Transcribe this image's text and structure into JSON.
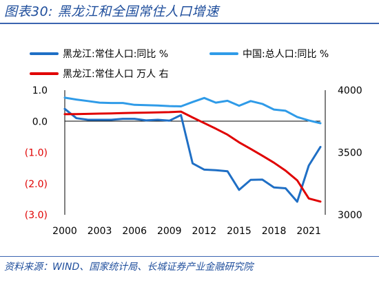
{
  "header": {
    "title": "图表30:  黑龙江和全国常住人口增速"
  },
  "footer": {
    "source": "资料来源：WIND、国家统计局、长城证券产业金融研究院"
  },
  "chart_data": {
    "type": "line",
    "legend": [
      {
        "name": "黑龙江:常住人口:同比 %",
        "color": "#1f6fc5"
      },
      {
        "name": "中国:总人口:同比 %",
        "color": "#2f9be8"
      },
      {
        "name": "黑龙江:常住人口 万人 右",
        "color": "#e00000"
      }
    ],
    "x": [
      2000,
      2001,
      2002,
      2003,
      2004,
      2005,
      2006,
      2007,
      2008,
      2009,
      2010,
      2011,
      2012,
      2013,
      2014,
      2015,
      2016,
      2017,
      2018,
      2019,
      2020,
      2021,
      2022
    ],
    "x_ticks": [
      "2000",
      "2003",
      "2006",
      "2009",
      "2012",
      "2015",
      "2018",
      "2021"
    ],
    "y_left": {
      "ticks": [
        "1.0",
        "0.0",
        "(1.0)",
        "(2.0)",
        "(3.0)"
      ],
      "range": [
        -3.0,
        1.0
      ]
    },
    "y_right": {
      "ticks": [
        "4000",
        "3500",
        "3000"
      ],
      "range": [
        3000,
        4000
      ]
    },
    "series": [
      {
        "name": "黑龙江:常住人口:同比 %",
        "color": "#1f6fc5",
        "axis": "left",
        "values": [
          0.4,
          0.1,
          0.05,
          0.05,
          0.05,
          0.08,
          0.08,
          0.03,
          0.05,
          0.02,
          0.2,
          -1.35,
          -1.55,
          -1.57,
          -1.6,
          -2.2,
          -1.88,
          -1.87,
          -2.12,
          -2.15,
          -2.58,
          -1.42,
          -0.82
        ]
      },
      {
        "name": "中国:总人口:同比 %",
        "color": "#2f9be8",
        "axis": "left",
        "values": [
          0.76,
          0.7,
          0.65,
          0.6,
          0.59,
          0.59,
          0.53,
          0.52,
          0.51,
          0.49,
          0.48,
          0.62,
          0.75,
          0.6,
          0.66,
          0.5,
          0.65,
          0.56,
          0.38,
          0.34,
          0.14,
          0.03,
          -0.06
        ]
      },
      {
        "name": "黑龙江:常住人口 万人 右",
        "color": "#e00000",
        "axis": "right",
        "values": [
          3807,
          3808,
          3810,
          3812,
          3813,
          3816,
          3818,
          3820,
          3822,
          3824,
          3828,
          3781,
          3736,
          3691,
          3643,
          3581,
          3529,
          3474,
          3418,
          3354,
          3276,
          3131,
          3106
        ]
      }
    ]
  }
}
